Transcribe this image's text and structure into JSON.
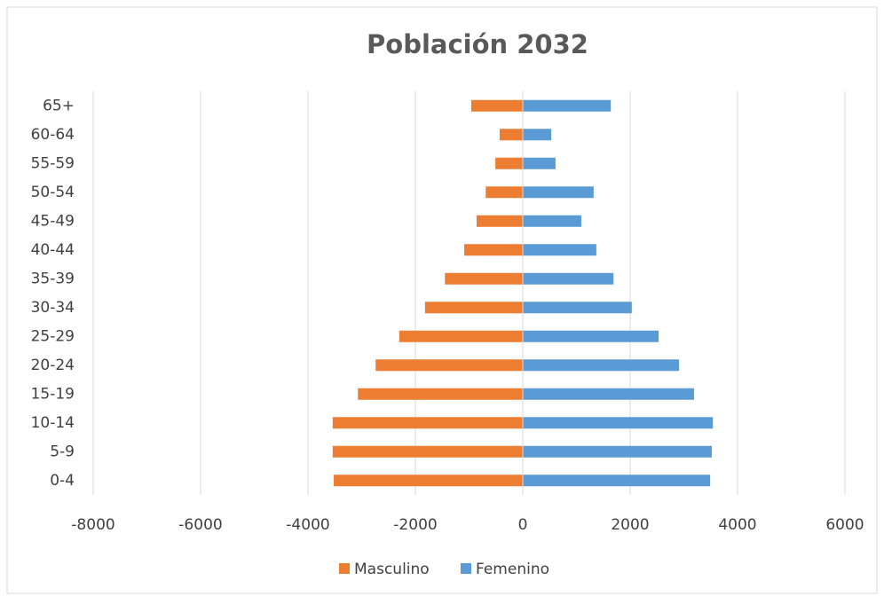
{
  "chart_data": {
    "type": "bar",
    "orientation": "horizontal",
    "title": "Población 2032",
    "categories": [
      "0-4",
      "5-9",
      "10-14",
      "15-19",
      "20-24",
      "25-29",
      "30-34",
      "35-39",
      "40-44",
      "45-49",
      "50-54",
      "55-59",
      "60-64",
      "65+"
    ],
    "series": [
      {
        "name": "Masculino",
        "color": "#ed7d31",
        "values": [
          -3520,
          -3540,
          -3540,
          -3070,
          -2740,
          -2300,
          -1820,
          -1450,
          -1090,
          -860,
          -690,
          -510,
          -430,
          -960
        ]
      },
      {
        "name": "Femenino",
        "color": "#5b9bd5",
        "values": [
          3490,
          3520,
          3540,
          3190,
          2910,
          2530,
          2030,
          1690,
          1370,
          1090,
          1320,
          610,
          530,
          1640
        ]
      }
    ],
    "xlim": [
      -8000,
      6000
    ],
    "xticks": [
      -8000,
      -6000,
      -4000,
      -2000,
      0,
      2000,
      4000,
      6000
    ],
    "grid": true,
    "legend": "bottom"
  }
}
